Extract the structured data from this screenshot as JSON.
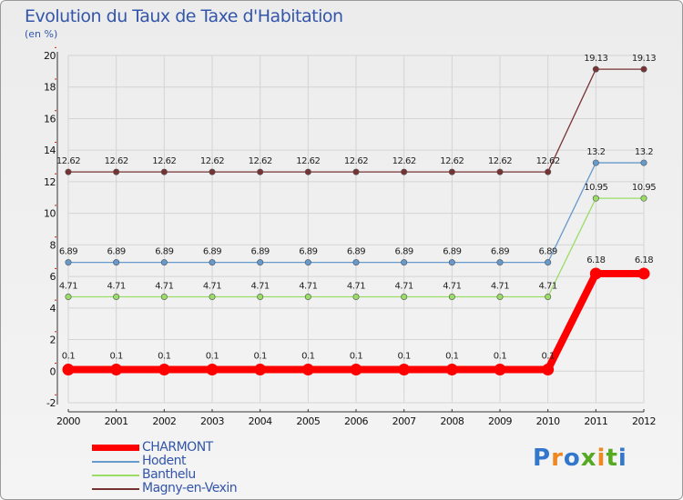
{
  "chart_data": {
    "type": "line",
    "title": "Evolution du Taux de Taxe d'Habitation",
    "ylabel": "(en %)",
    "xlabel": "",
    "categories": [
      "2000",
      "2001",
      "2002",
      "2003",
      "2004",
      "2005",
      "2006",
      "2007",
      "2008",
      "2009",
      "2010",
      "2011",
      "2012"
    ],
    "ylim": [
      -2,
      20
    ],
    "yticks": [
      -2,
      0,
      2,
      4,
      6,
      8,
      10,
      12,
      14,
      16,
      18,
      20
    ],
    "grid": true,
    "legend_position": "bottom-left",
    "series": [
      {
        "name": "CHARMONT",
        "color": "#ff0000",
        "values": [
          0.1,
          0.1,
          0.1,
          0.1,
          0.1,
          0.1,
          0.1,
          0.1,
          0.1,
          0.1,
          0.1,
          6.18,
          6.18
        ],
        "labels": [
          "0.1",
          "0.1",
          "0.1",
          "0.1",
          "0.1",
          "0.1",
          "0.1",
          "0.1",
          "0.1",
          "0.1",
          "0.1",
          "6.18",
          "6.18"
        ]
      },
      {
        "name": "Hodent",
        "color": "#6699cc",
        "values": [
          6.89,
          6.89,
          6.89,
          6.89,
          6.89,
          6.89,
          6.89,
          6.89,
          6.89,
          6.89,
          6.89,
          13.2,
          13.2
        ],
        "labels": [
          "6.89",
          "6.89",
          "6.89",
          "6.89",
          "6.89",
          "6.89",
          "6.89",
          "6.89",
          "6.89",
          "6.89",
          "6.89",
          "13.2",
          "13.2"
        ]
      },
      {
        "name": "Banthelu",
        "color": "#99dd66",
        "values": [
          4.71,
          4.71,
          4.71,
          4.71,
          4.71,
          4.71,
          4.71,
          4.71,
          4.71,
          4.71,
          4.71,
          10.95,
          10.95
        ],
        "labels": [
          "4.71",
          "4.71",
          "4.71",
          "4.71",
          "4.71",
          "4.71",
          "4.71",
          "4.71",
          "4.71",
          "4.71",
          "4.71",
          "10.95",
          "10.95"
        ]
      },
      {
        "name": "Magny-en-Vexin",
        "color": "#773333",
        "values": [
          12.62,
          12.62,
          12.62,
          12.62,
          12.62,
          12.62,
          12.62,
          12.62,
          12.62,
          12.62,
          12.62,
          19.13,
          19.13
        ],
        "labels": [
          "12.62",
          "12.62",
          "12.62",
          "12.62",
          "12.62",
          "12.62",
          "12.62",
          "12.62",
          "12.62",
          "12.62",
          "12.62",
          "19.13",
          "19.13"
        ]
      }
    ]
  },
  "brand": {
    "text": "Proxiti"
  }
}
